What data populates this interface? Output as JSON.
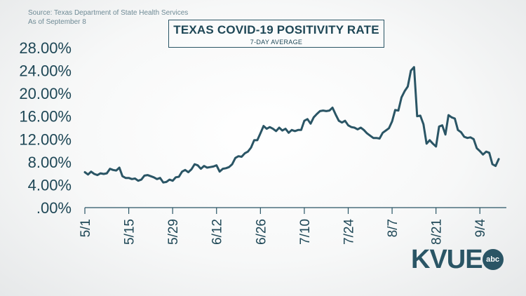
{
  "source": {
    "line1": "Source: Texas Department of State Health Services",
    "line2": "As of September 8"
  },
  "logo": {
    "text": "KVUE",
    "badge": "abc"
  },
  "colors": {
    "line": "#2a5565",
    "text": "#1e4756",
    "tick": "#2a5565"
  },
  "chart_data": {
    "type": "line",
    "title": "TEXAS COVID-19 POSITIVITY RATE",
    "subtitle": "7-DAY AVERAGE",
    "xlabel": "",
    "ylabel": "",
    "ylim": [
      0,
      28
    ],
    "yticks": [
      0,
      4,
      8,
      12,
      16,
      20,
      24,
      28
    ],
    "ytick_labels": [
      ".00%",
      "4.00%",
      "8.00%",
      "12.00%",
      "16.00%",
      "20.00%",
      "24.00%",
      "28.00%"
    ],
    "xticks": [
      0,
      14,
      28,
      42,
      56,
      70,
      84,
      98,
      112,
      126
    ],
    "xtick_labels": [
      "5/1",
      "5/15",
      "5/29",
      "6/12",
      "6/26",
      "7/10",
      "7/24",
      "8/7",
      "8/21",
      "9/4"
    ],
    "grid": false,
    "legend": "none",
    "x_unit": "days since 5/1",
    "series": [
      {
        "values": [
          6.2,
          5.8,
          6.3,
          5.9,
          5.7,
          6.0,
          5.9,
          6.0,
          6.8,
          6.6,
          6.5,
          7.0,
          5.5,
          5.2,
          5.2,
          5.0,
          5.1,
          4.7,
          4.9,
          5.6,
          5.7,
          5.5,
          5.3,
          5.0,
          5.2,
          4.4,
          4.5,
          4.9,
          4.7,
          5.3,
          5.4,
          6.3,
          6.6,
          6.2,
          6.7,
          7.6,
          7.4,
          6.8,
          7.3,
          7.0,
          7.1,
          7.2,
          7.4,
          6.3,
          6.8,
          6.9,
          7.1,
          7.6,
          8.7,
          9.0,
          8.9,
          9.5,
          9.8,
          10.5,
          11.8,
          11.8,
          13.0,
          14.3,
          13.8,
          14.1,
          13.8,
          13.4,
          14.0,
          13.5,
          13.8,
          13.1,
          13.6,
          13.4,
          13.6,
          13.6,
          15.2,
          15.5,
          14.7,
          15.8,
          16.4,
          16.9,
          17.0,
          16.9,
          17.0,
          17.5,
          16.3,
          15.2,
          14.9,
          15.2,
          14.4,
          14.1,
          14.0,
          13.7,
          14.0,
          13.6,
          13.0,
          12.6,
          12.2,
          12.2,
          12.1,
          13.1,
          13.5,
          13.9,
          15.1,
          17.1,
          17.0,
          19.3,
          20.4,
          21.2,
          24.0,
          24.6,
          16.0,
          16.1,
          14.6,
          11.2,
          11.8,
          11.2,
          10.7,
          14.2,
          14.4,
          12.8,
          16.2,
          15.8,
          15.6,
          13.6,
          13.2,
          12.4,
          12.2,
          12.3,
          12.0,
          10.4,
          9.9,
          9.3,
          9.8,
          9.6,
          7.6,
          7.3,
          8.5
        ]
      }
    ]
  }
}
